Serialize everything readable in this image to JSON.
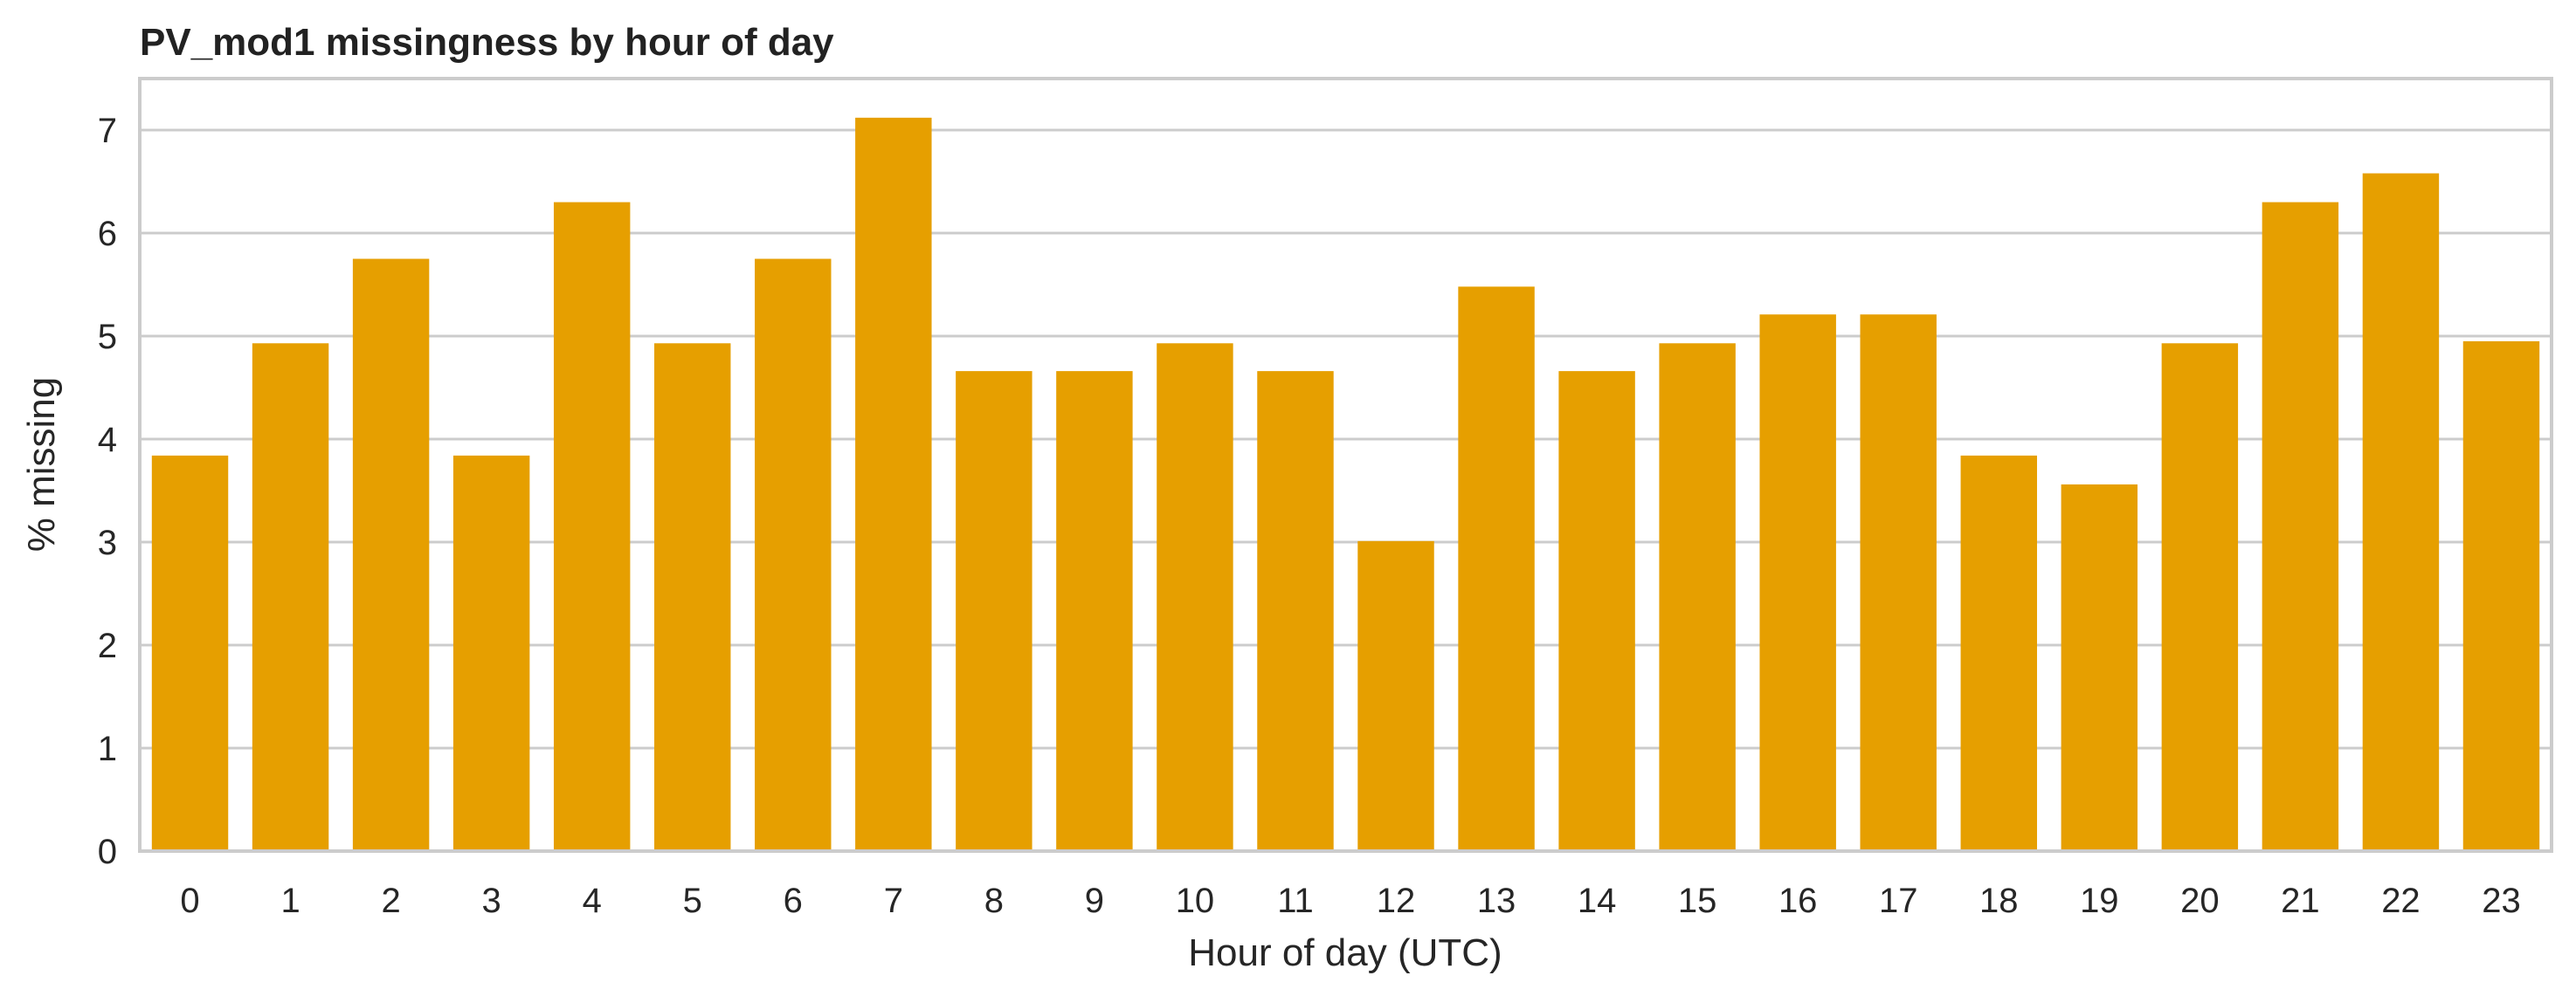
{
  "chart_data": {
    "type": "bar",
    "title": "PV_mod1 missingness by hour of day",
    "xlabel": "Hour of day (UTC)",
    "ylabel": "% missing",
    "categories": [
      "0",
      "1",
      "2",
      "3",
      "4",
      "5",
      "6",
      "7",
      "8",
      "9",
      "10",
      "11",
      "12",
      "13",
      "14",
      "15",
      "16",
      "17",
      "18",
      "19",
      "20",
      "21",
      "22",
      "23"
    ],
    "values": [
      3.84,
      4.93,
      5.75,
      3.84,
      6.3,
      4.93,
      5.75,
      7.12,
      4.66,
      4.66,
      4.93,
      4.66,
      3.01,
      5.48,
      4.66,
      4.93,
      5.21,
      5.21,
      3.84,
      3.56,
      4.93,
      6.3,
      6.58,
      4.95
    ],
    "ylim": [
      0,
      7.5
    ],
    "yticks": [
      "0",
      "1",
      "2",
      "3",
      "4",
      "5",
      "6",
      "7"
    ],
    "grid": "horizontal",
    "bar_color": "#E69F00",
    "legend": "none"
  }
}
